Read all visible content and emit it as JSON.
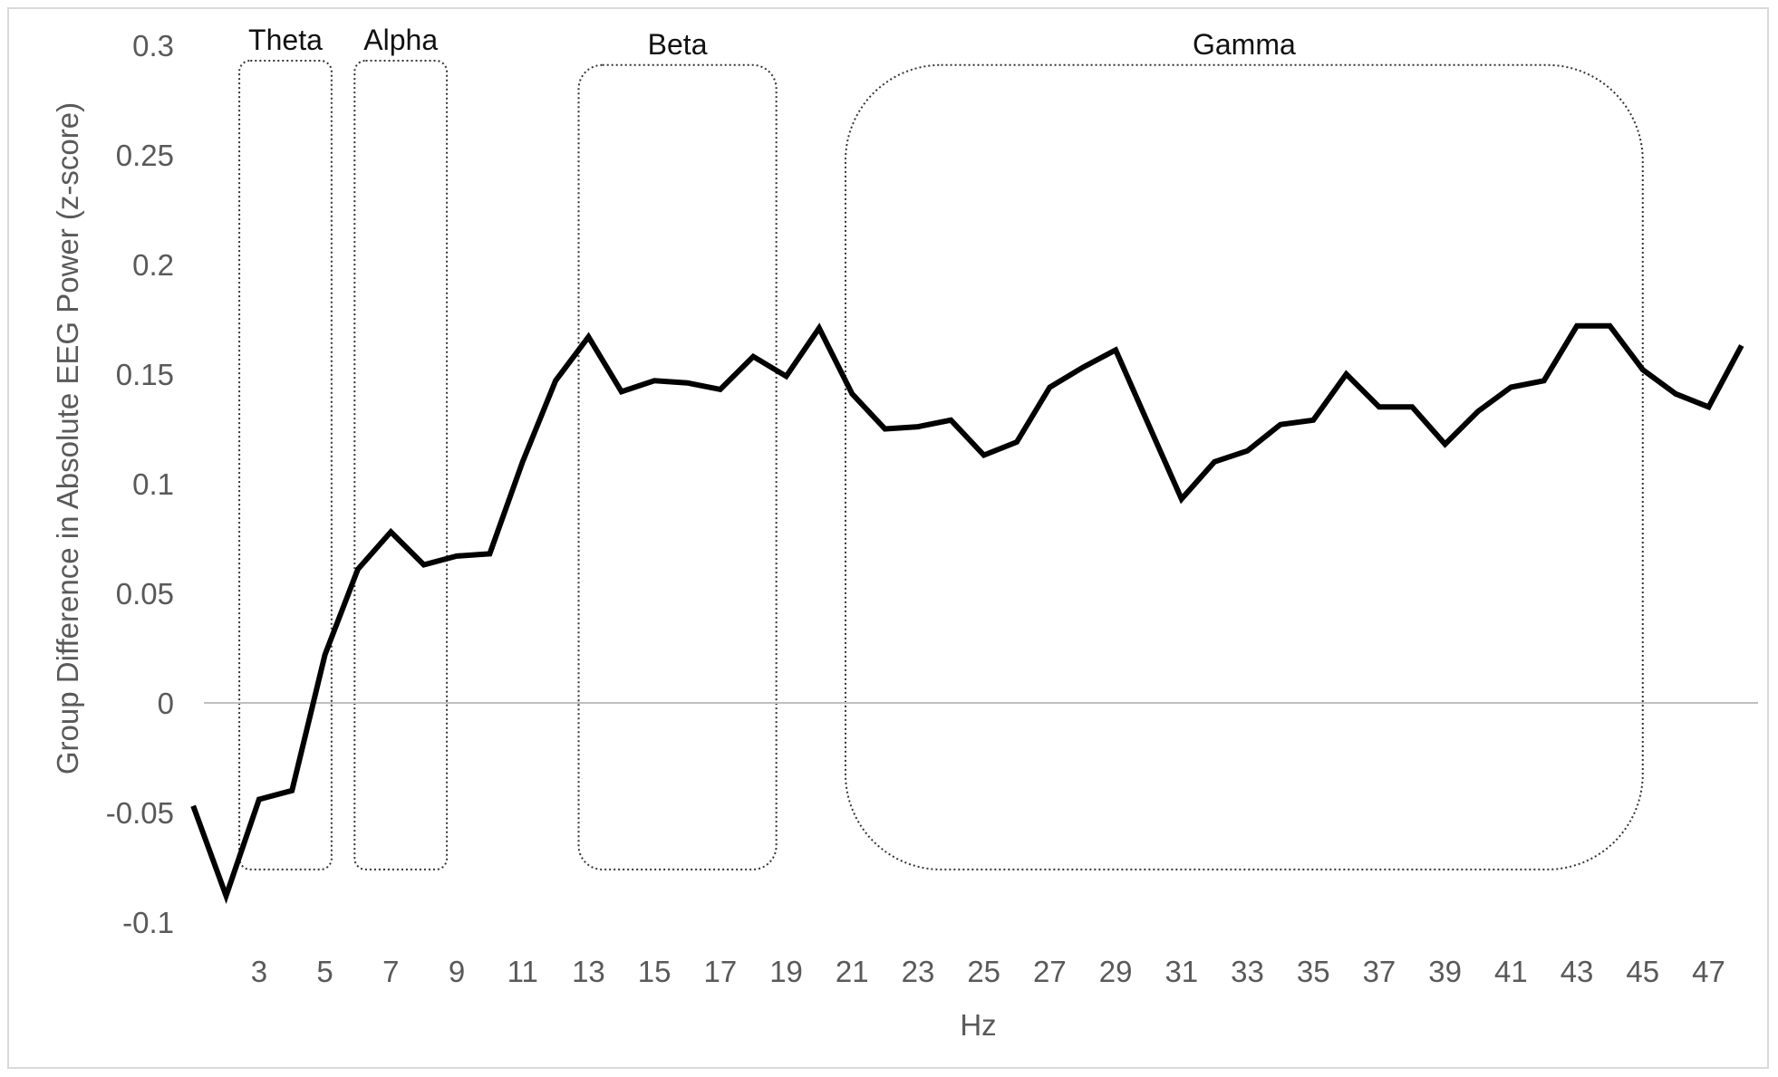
{
  "chart_data": {
    "type": "line",
    "xlabel": "Hz",
    "ylabel": "Group Difference in Absolute EEG Power (z-score)",
    "ylim": [
      -0.1,
      0.3
    ],
    "yticks": [
      -0.1,
      -0.05,
      0,
      0.05,
      0.1,
      0.15,
      0.2,
      0.25,
      0.3
    ],
    "ytick_labels": [
      "-0.1",
      "-0.05",
      "0",
      "0.05",
      "0.1",
      "0.15",
      "0.2",
      "0.25",
      "0.3"
    ],
    "xlim": [
      0.5,
      48.5
    ],
    "xticks": [
      3,
      5,
      7,
      9,
      11,
      13,
      15,
      17,
      19,
      21,
      23,
      25,
      27,
      29,
      31,
      33,
      35,
      37,
      39,
      41,
      43,
      45,
      47
    ],
    "xtick_labels": [
      "3",
      "5",
      "7",
      "9",
      "11",
      "13",
      "15",
      "17",
      "19",
      "21",
      "23",
      "25",
      "27",
      "29",
      "31",
      "33",
      "35",
      "37",
      "39",
      "41",
      "43",
      "45",
      "47"
    ],
    "grid": false,
    "zero_line": true,
    "series": [
      {
        "color": "#000000",
        "x": [
          1,
          2,
          3,
          4,
          5,
          6,
          7,
          8,
          9,
          10,
          11,
          12,
          13,
          14,
          15,
          16,
          17,
          18,
          19,
          20,
          21,
          22,
          23,
          24,
          25,
          26,
          27,
          28,
          29,
          30,
          31,
          32,
          33,
          34,
          35,
          36,
          37,
          38,
          39,
          40,
          41,
          42,
          43,
          44,
          45,
          46,
          47,
          48
        ],
        "values": [
          -0.047,
          -0.088,
          -0.044,
          -0.04,
          0.022,
          0.061,
          0.078,
          0.063,
          0.067,
          0.068,
          0.11,
          0.147,
          0.167,
          0.142,
          0.147,
          0.146,
          0.143,
          0.158,
          0.149,
          0.171,
          0.141,
          0.125,
          0.126,
          0.129,
          0.113,
          0.119,
          0.144,
          0.153,
          0.161,
          0.127,
          0.093,
          0.11,
          0.115,
          0.127,
          0.129,
          0.15,
          0.135,
          0.135,
          0.118,
          0.133,
          0.144,
          0.147,
          0.172,
          0.172,
          0.152,
          0.141,
          0.135,
          0.163
        ]
      }
    ],
    "bands": [
      {
        "label": "Theta",
        "x0": 2.4,
        "x1": 5.2,
        "y0": -0.076,
        "y1": 0.293
      },
      {
        "label": "Alpha",
        "x0": 5.9,
        "x1": 8.7,
        "y0": -0.076,
        "y1": 0.293
      },
      {
        "label": "Beta",
        "x0": 12.7,
        "x1": 18.7,
        "y0": -0.076,
        "y1": 0.291
      },
      {
        "label": "Gamma",
        "x0": 20.8,
        "x1": 45.0,
        "y0": -0.076,
        "y1": 0.291
      }
    ]
  }
}
